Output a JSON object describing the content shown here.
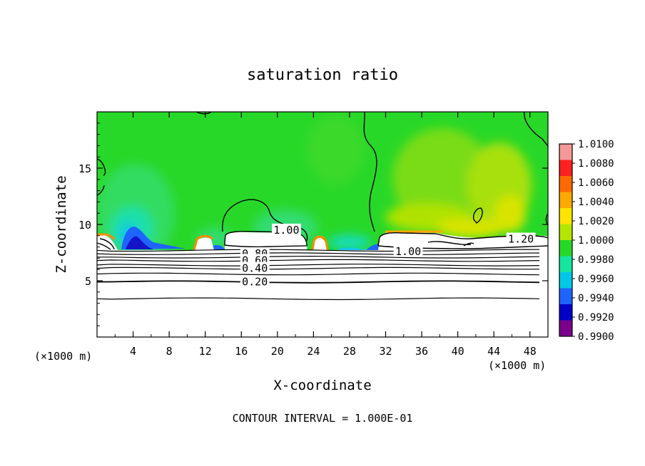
{
  "chart_data": {
    "type": "heatmap",
    "title": "saturation ratio",
    "xlabel": "X-coordinate",
    "ylabel": "Z-coordinate",
    "x_unit": "(×1000 m)",
    "z_unit": "(×1000 m)",
    "xlim": [
      0,
      50
    ],
    "ylim": [
      0,
      20
    ],
    "x_ticks": [
      "4",
      "8",
      "12",
      "16",
      "20",
      "24",
      "28",
      "32",
      "36",
      "40",
      "44",
      "48"
    ],
    "y_ticks": [
      "5",
      "10",
      "15"
    ],
    "colorbar_labels": [
      "1.0100",
      "1.0080",
      "1.0060",
      "1.0040",
      "1.0020",
      "1.0000",
      "0.9980",
      "0.9960",
      "0.9940",
      "0.9920",
      "0.9900"
    ],
    "colorbar_colors": [
      "#f49898",
      "#ff2020",
      "#ff6a00",
      "#ffa800",
      "#ffe400",
      "#b4e600",
      "#28d828",
      "#14e6a0",
      "#00c8e6",
      "#1e64ff",
      "#0000c8",
      "#7a008c"
    ],
    "contour_labels": [
      {
        "text": "1.00",
        "x": 21.0,
        "z": 9.5
      },
      {
        "text": "1.00",
        "x": 34.5,
        "z": 7.6
      },
      {
        "text": "1.20",
        "x": 47.0,
        "z": 8.7
      },
      {
        "text": "0.80",
        "x": 17.5,
        "z": 7.4
      },
      {
        "text": "0.60",
        "x": 17.5,
        "z": 6.8
      },
      {
        "text": "0.40",
        "x": 17.5,
        "z": 6.1
      },
      {
        "text": "0.20",
        "x": 17.5,
        "z": 4.9
      }
    ],
    "contour_levels_z": [
      3.4,
      4.9,
      5.6,
      6.1,
      6.4,
      6.8,
      7.1,
      7.4,
      7.7
    ],
    "contour_interval_text": "CONTOUR INTERVAL = 1.000E-01"
  }
}
